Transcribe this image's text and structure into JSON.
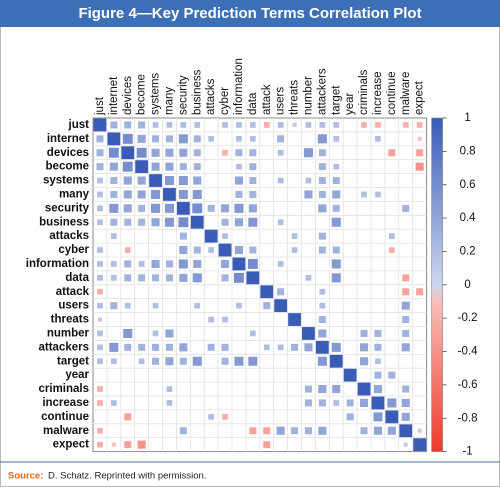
{
  "chart_data": {
    "type": "corrplot",
    "title": "Figure 4—Key Prediction Terms Correlation Plot",
    "source_label": "Source:",
    "source": "D. Schatz. Reprinted with permission.",
    "categories": [
      "just",
      "internet",
      "devices",
      "become",
      "systems",
      "many",
      "security",
      "business",
      "attacks",
      "cyber",
      "information",
      "data",
      "attack",
      "users",
      "threats",
      "number",
      "attackers",
      "target",
      "year",
      "criminals",
      "increase",
      "continue",
      "malware",
      "expect"
    ],
    "values": [
      [
        1,
        0.3,
        0.3,
        0.3,
        0.2,
        0.2,
        0.2,
        0.2,
        0,
        0.2,
        0.2,
        0.2,
        -0.2,
        0.2,
        0.1,
        0.2,
        0.2,
        0.2,
        0,
        -0.2,
        -0.2,
        0,
        -0.2,
        -0.2
      ],
      [
        0.3,
        1,
        0.6,
        0.4,
        0.3,
        0.3,
        0.5,
        0.3,
        0.2,
        0,
        0.2,
        0.2,
        0,
        0.3,
        0,
        0,
        0.5,
        0.2,
        0,
        0,
        0.2,
        0,
        0,
        -0.1
      ],
      [
        0.3,
        0.6,
        1,
        0.6,
        0.4,
        0.4,
        0.4,
        0.3,
        0,
        -0.2,
        0.3,
        0.3,
        0,
        0.2,
        0,
        0.5,
        0.3,
        0,
        0,
        0,
        0,
        -0.3,
        0,
        -0.3
      ],
      [
        0.3,
        0.4,
        0.6,
        1,
        0.4,
        0.4,
        0.3,
        0.3,
        0,
        0,
        0.2,
        0.3,
        0,
        0,
        0,
        0,
        0.3,
        0.2,
        0,
        0,
        0,
        0,
        0,
        -0.4
      ],
      [
        0.2,
        0.3,
        0.4,
        0.4,
        1,
        0.5,
        0.5,
        0.4,
        0,
        0,
        0.4,
        0.3,
        0,
        0.2,
        0,
        0.2,
        0.3,
        0.3,
        0,
        0,
        0,
        0,
        0,
        0
      ],
      [
        0.2,
        0.3,
        0.4,
        0.4,
        0.5,
        1,
        0.5,
        0.5,
        0,
        0,
        0.3,
        0.3,
        0,
        0,
        0,
        0.4,
        0.3,
        0.4,
        0,
        0.2,
        0.2,
        0,
        0,
        0
      ],
      [
        0.2,
        0.5,
        0.4,
        0.3,
        0.5,
        0.5,
        1,
        0.6,
        0.3,
        0.4,
        0.5,
        0.4,
        0,
        0,
        0,
        0,
        0.4,
        0.3,
        0,
        0,
        0,
        0,
        0.3,
        0
      ],
      [
        0.2,
        0.3,
        0.3,
        0.3,
        0.4,
        0.5,
        0.6,
        1,
        0,
        0.3,
        0.4,
        0.5,
        0,
        0.2,
        0,
        0,
        0,
        0.5,
        0,
        0,
        0,
        0,
        0,
        0
      ],
      [
        0,
        0.2,
        0,
        0,
        0,
        0,
        0.3,
        0,
        1,
        0.2,
        0,
        0,
        0,
        0,
        0.2,
        0,
        0.3,
        0,
        0,
        0,
        0,
        0.2,
        0,
        0
      ],
      [
        0.2,
        0,
        -0.2,
        0,
        0,
        0,
        0.4,
        0.3,
        0.2,
        1,
        0.4,
        0.3,
        0,
        0,
        0.2,
        0,
        0.3,
        0.3,
        0,
        0,
        0,
        -0.2,
        0,
        0
      ],
      [
        0.2,
        0.2,
        0.3,
        0.2,
        0.4,
        0.3,
        0.5,
        0.4,
        0,
        0.4,
        1,
        0.6,
        0,
        0.2,
        0,
        0,
        0,
        0.5,
        0,
        0,
        0,
        0,
        0,
        0
      ],
      [
        0.2,
        0.2,
        0.3,
        0.3,
        0.3,
        0.3,
        0.4,
        0.5,
        0,
        0.3,
        0.6,
        1,
        0,
        0,
        0,
        0.2,
        0,
        0.5,
        0,
        0,
        0,
        0,
        -0.3,
        0
      ],
      [
        -0.2,
        0,
        0,
        0,
        0,
        0,
        0,
        0,
        0,
        0,
        0,
        0,
        1,
        0.3,
        0,
        0,
        0.2,
        0,
        0,
        0,
        0,
        0,
        -0.3,
        -0.3
      ],
      [
        0.2,
        0.3,
        0.2,
        0,
        0.2,
        0,
        0,
        0.2,
        0,
        0,
        0.2,
        0,
        0.3,
        1,
        0,
        0,
        0.2,
        0,
        0,
        0,
        0,
        0,
        0.4,
        0
      ],
      [
        0.1,
        0,
        0,
        0,
        0,
        0,
        0,
        0,
        0.2,
        0.2,
        0,
        0,
        0,
        0,
        1,
        0,
        0.3,
        0,
        0,
        0,
        0,
        0,
        0.3,
        0
      ],
      [
        0.2,
        0,
        0.5,
        0,
        0.2,
        0.4,
        0,
        0,
        0,
        0,
        0,
        0.2,
        0,
        0,
        0,
        1,
        0.4,
        0,
        0,
        0.3,
        0.3,
        0,
        0.3,
        0
      ],
      [
        0.2,
        0.5,
        0.3,
        0.3,
        0.3,
        0.3,
        0.4,
        0,
        0.3,
        0.3,
        0,
        0,
        0.2,
        0.2,
        0.3,
        0.4,
        1,
        0.5,
        0,
        0.4,
        0.3,
        0,
        0.4,
        0
      ],
      [
        0.2,
        0.2,
        0,
        0.2,
        0.3,
        0.4,
        0.3,
        0.5,
        0,
        0.3,
        0.5,
        0.5,
        0,
        0,
        0,
        0,
        0.5,
        1,
        0,
        0.4,
        0.2,
        0,
        0,
        0
      ],
      [
        0,
        0,
        0,
        0,
        0,
        0,
        0,
        0,
        0,
        0,
        0,
        0,
        0,
        0,
        0,
        0,
        0,
        0,
        1,
        0,
        0.3,
        0.3,
        0,
        0
      ],
      [
        -0.2,
        0,
        0,
        0,
        0,
        0.2,
        0,
        0,
        0,
        0,
        0,
        0,
        0,
        0,
        0,
        0.3,
        0.4,
        0.4,
        0,
        1,
        0.4,
        0,
        0.3,
        0
      ],
      [
        -0.2,
        0.2,
        0,
        0,
        0,
        0.2,
        0,
        0,
        0,
        0,
        0,
        0,
        0,
        0,
        0,
        0.3,
        0.3,
        0.2,
        0.3,
        0.4,
        1,
        0.5,
        0.4,
        0
      ],
      [
        0,
        0,
        -0.3,
        0,
        0,
        0,
        0,
        0,
        0.2,
        -0.2,
        0,
        0,
        0,
        0,
        0,
        0,
        0,
        0,
        0.3,
        0,
        0.5,
        1,
        0.4,
        0
      ],
      [
        -0.2,
        0,
        0,
        0,
        0,
        0,
        0.3,
        0,
        0,
        0,
        0,
        -0.3,
        -0.3,
        0.4,
        0.3,
        0.3,
        0.4,
        0,
        0,
        0.3,
        0.4,
        0.4,
        1,
        0.1
      ],
      [
        -0.2,
        -0.1,
        -0.3,
        -0.4,
        0,
        0,
        0,
        0,
        0,
        0,
        0,
        0,
        -0.3,
        0,
        0,
        0,
        0,
        0,
        0,
        0,
        0,
        0,
        0.1,
        1
      ]
    ],
    "positive_color": "#3a5cb6",
    "negative_color": "#ec3a2a",
    "clim": [
      -1,
      1
    ],
    "cticks": [
      1,
      0.8,
      0.6,
      0.4,
      0.2,
      0,
      -0.2,
      -0.4,
      -0.6,
      -0.8,
      -1
    ]
  }
}
